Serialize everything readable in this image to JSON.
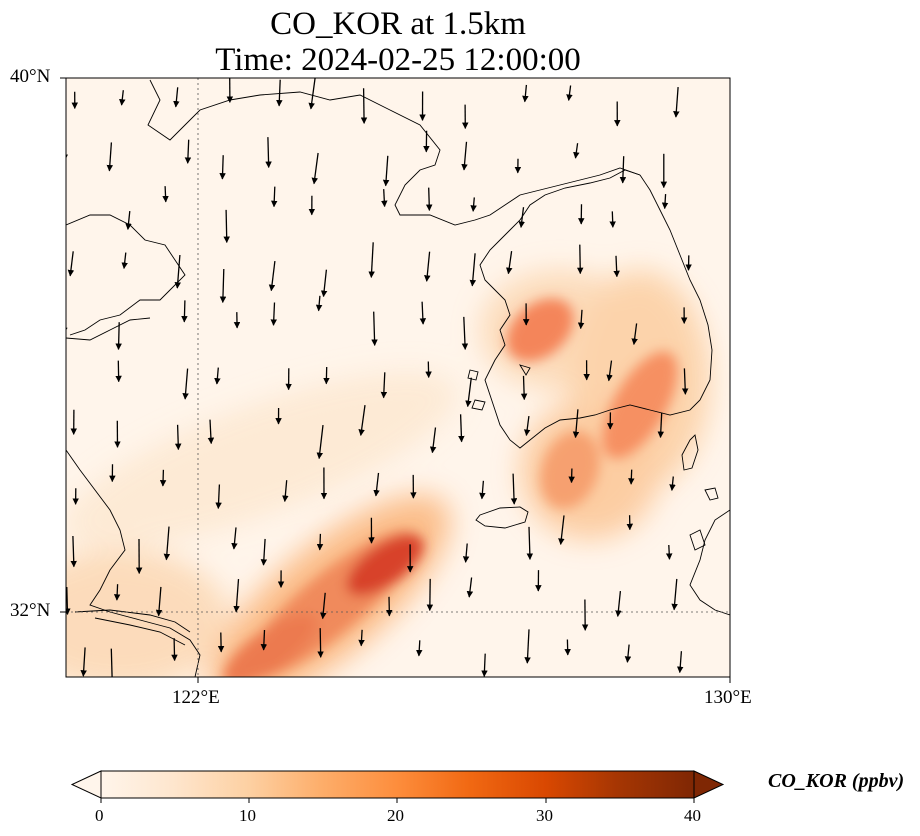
{
  "title_line1": "CO_KOR at 1.5km",
  "title_line2": "Time: 2024-02-25 12:00:00",
  "lat_ticks": [
    "40°N",
    "32°N"
  ],
  "lon_ticks": [
    "122°E",
    "130°E"
  ],
  "colorbar": {
    "label": "CO_KOR (ppbv)",
    "ticks": [
      "0",
      "10",
      "20",
      "30",
      "40"
    ],
    "min": 0,
    "max": 40,
    "extend": "both",
    "colormap": [
      "#fff5eb",
      "#fee6ce",
      "#fdd0a2",
      "#fdae6b",
      "#fd8d3c",
      "#f16913",
      "#d94801",
      "#a63603",
      "#7f2704"
    ]
  },
  "map": {
    "lon_range": [
      120,
      130
    ],
    "lat_range": [
      31,
      40
    ],
    "gridlines": {
      "lon": 122,
      "lat": 32,
      "style": "dotted"
    },
    "coastline_color": "#000000",
    "wind_arrows": "southward flow, mostly N to NNW winds"
  }
}
